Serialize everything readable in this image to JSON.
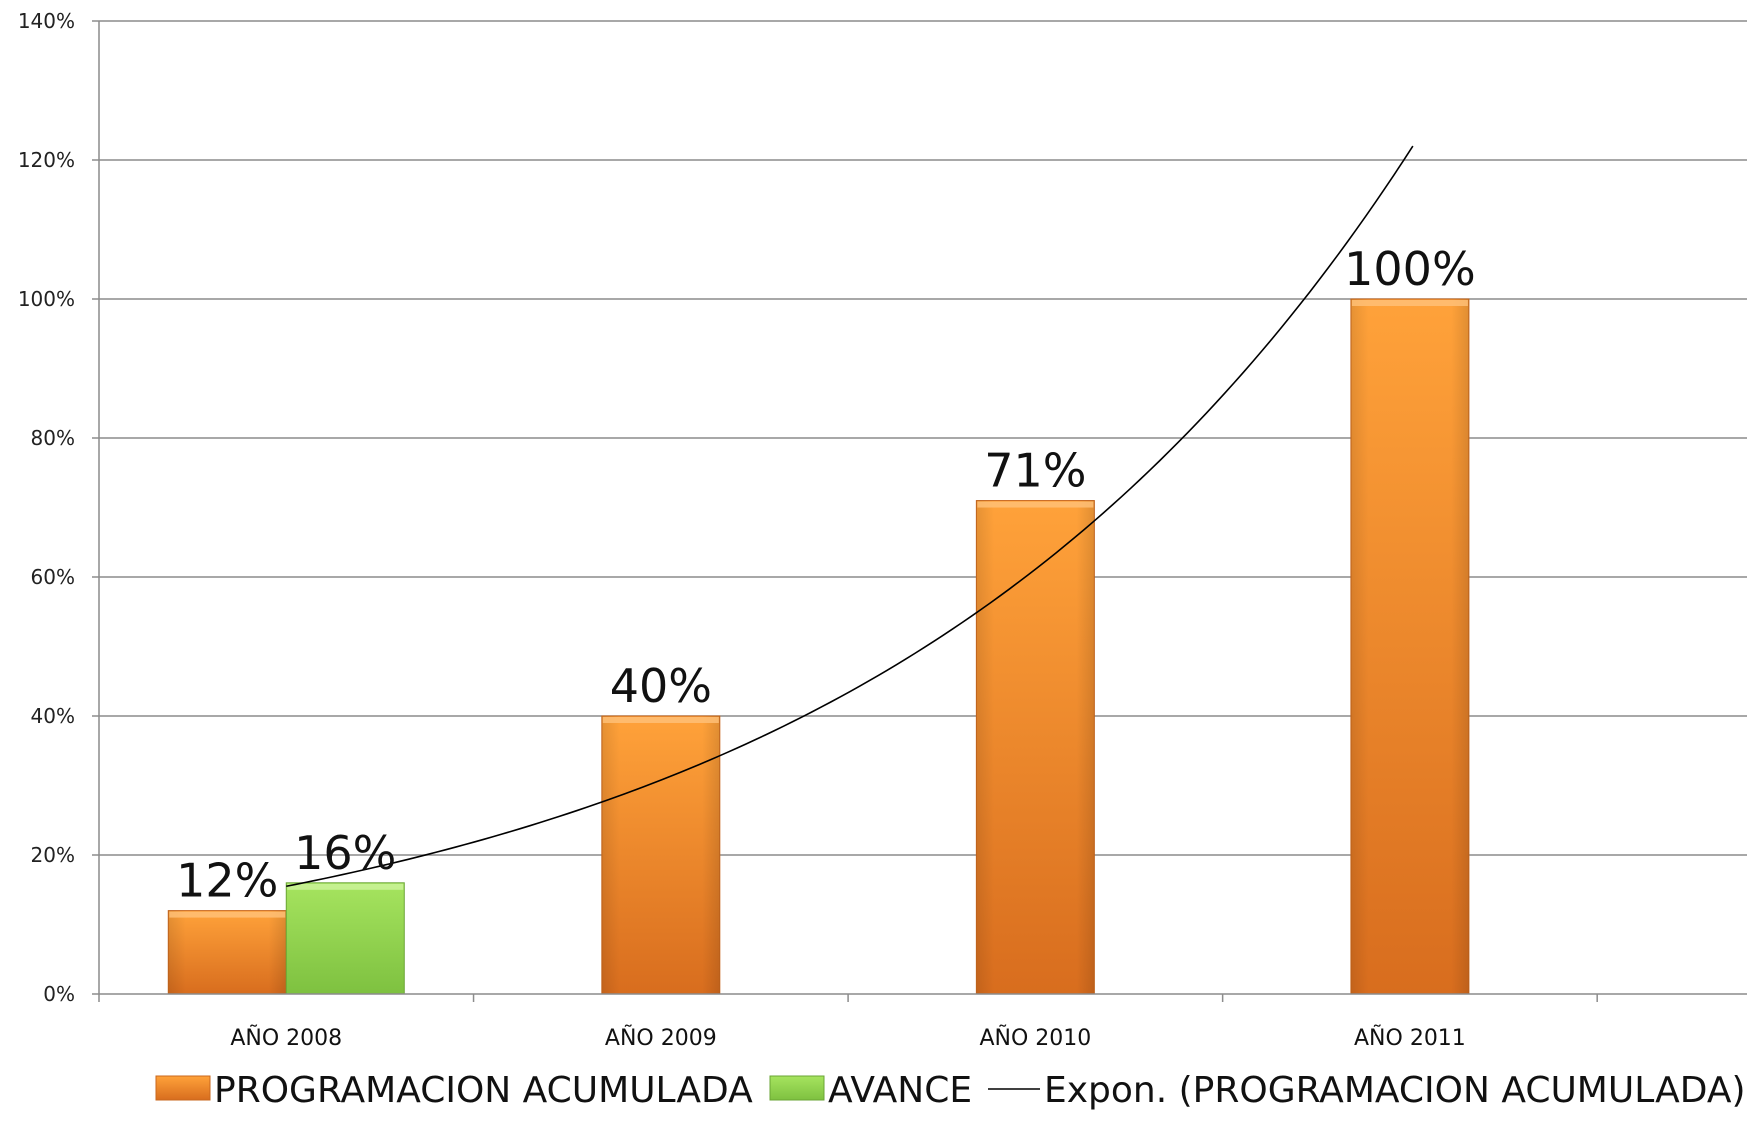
{
  "chart_data": {
    "type": "bar",
    "categories": [
      "AÑO 2008",
      "AÑO 2009",
      "AÑO 2010",
      "AÑO 2011"
    ],
    "series": [
      {
        "name": "PROGRAMACION ACUMULADA",
        "values": [
          12,
          40,
          71,
          100
        ],
        "labels": [
          "12%",
          "40%",
          "71%",
          "100%"
        ],
        "color": "#f7902b"
      },
      {
        "name": "AVANCE",
        "values": [
          16,
          null,
          null,
          null
        ],
        "labels": [
          "16%",
          "",
          "",
          ""
        ],
        "color": "#92d050"
      }
    ],
    "trendline": {
      "name": "Expon. (PROGRAMACION ACUMULADA)",
      "type": "exponential",
      "color": "#000000",
      "start_value": 15.5,
      "end_value": 122
    },
    "yticks": [
      "0%",
      "20%",
      "40%",
      "60%",
      "80%",
      "100%",
      "120%",
      "140%"
    ],
    "ylim": [
      0,
      140
    ],
    "grid": true,
    "legend_position": "bottom"
  }
}
